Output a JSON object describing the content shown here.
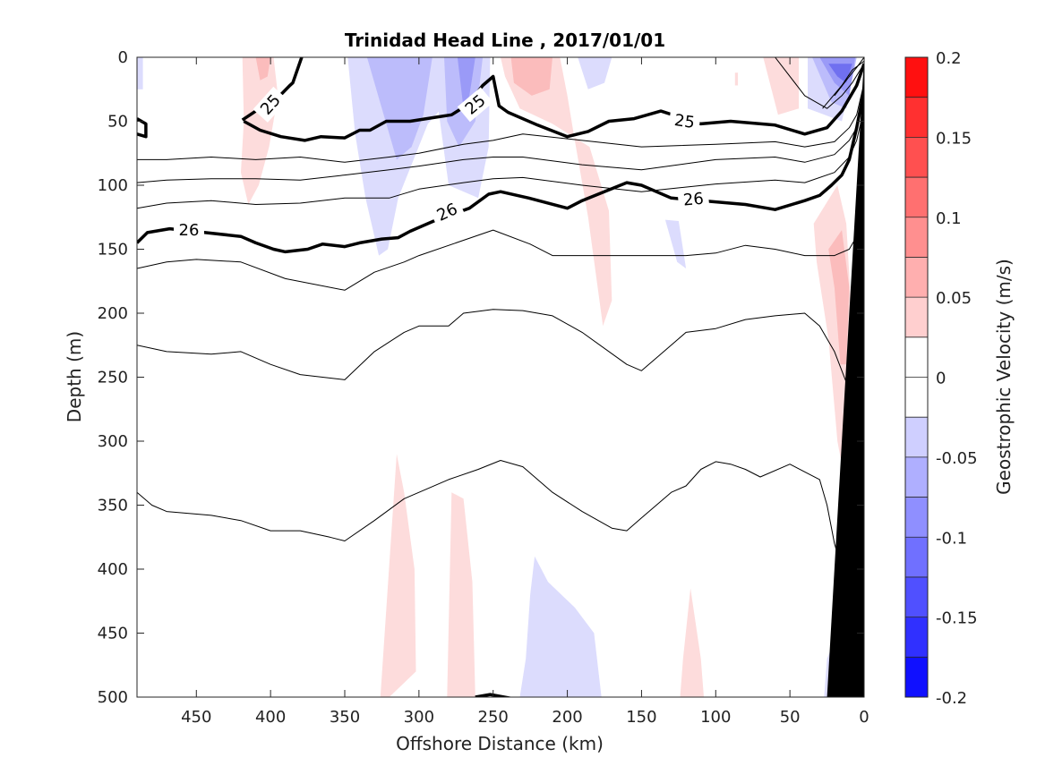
{
  "chart_data": {
    "type": "heatmap",
    "title": "Trinidad Head Line , 2017/01/01",
    "xlabel": "Offshore Distance (km)",
    "ylabel": "Depth (m)",
    "colorbar_label": "Geostrophic Velocity (m/s)",
    "xlim": [
      490,
      0
    ],
    "ylim": [
      0,
      500
    ],
    "x_reversed": true,
    "y_reversed": true,
    "x_ticks": [
      450,
      400,
      350,
      300,
      250,
      200,
      150,
      100,
      50,
      0
    ],
    "y_ticks": [
      0,
      50,
      100,
      150,
      200,
      250,
      300,
      350,
      400,
      450,
      500
    ],
    "colorbar_range": [
      -0.2,
      0.2
    ],
    "colorbar_ticks": [
      "0.2",
      "0.15",
      "0.1",
      "0.05",
      "0",
      "-0.05",
      "-0.1",
      "-0.15",
      "-0.2"
    ],
    "colorbar_levels": [
      0.175,
      0.15,
      0.125,
      0.1,
      0.075,
      0.05,
      0.025,
      0,
      -0.025,
      -0.05,
      -0.075,
      -0.1,
      -0.125,
      -0.15,
      -0.175
    ],
    "colors": {
      "pos_light": "#fddcdc",
      "pos_mid": "#fbbcbc",
      "pos_strong": "#f79a9a",
      "neg_light": "#dcdcfd",
      "neg_mid": "#bcbcfb",
      "neg_strong": "#9a9af7",
      "neg_core": "#7070f0",
      "bathymetry": "#000000",
      "contour": "#000000"
    },
    "isopycnal_labels": [
      "25",
      "25",
      "25",
      "26",
      "26",
      "26"
    ],
    "bathymetry": {
      "x": [
        0,
        0,
        5,
        15,
        25
      ],
      "y": [
        0,
        0,
        100,
        300,
        500
      ]
    },
    "velocity_patches": [
      {
        "v": -0.025,
        "x": [
          490,
          486,
          486,
          490
        ],
        "y": [
          0,
          0,
          25,
          25
        ]
      },
      {
        "v": 0.025,
        "x": [
          419,
          398,
          395,
          401,
          408,
          415,
          420,
          418
        ],
        "y": [
          0,
          0,
          30,
          70,
          100,
          115,
          90,
          50
        ]
      },
      {
        "v": 0.05,
        "x": [
          410,
          400,
          402,
          407
        ],
        "y": [
          0,
          0,
          15,
          18
        ]
      },
      {
        "v": -0.025,
        "x": [
          348,
          275,
          281,
          294,
          314,
          321,
          327,
          336,
          343
        ],
        "y": [
          0,
          0,
          35,
          52,
          110,
          150,
          155,
          110,
          60
        ]
      },
      {
        "v": -0.05,
        "x": [
          335,
          291,
          297,
          305,
          315
        ],
        "y": [
          0,
          0,
          45,
          70,
          80
        ]
      },
      {
        "v": -0.025,
        "x": [
          288,
          252,
          253,
          260,
          280,
          287
        ],
        "y": [
          0,
          0,
          70,
          110,
          100,
          40
        ]
      },
      {
        "v": -0.05,
        "x": [
          283,
          257,
          262,
          273,
          281
        ],
        "y": [
          0,
          0,
          50,
          70,
          50
        ]
      },
      {
        "v": -0.075,
        "x": [
          274,
          262,
          266,
          270
        ],
        "y": [
          0,
          0,
          30,
          40
        ]
      },
      {
        "v": 0.025,
        "x": [
          245,
          205,
          200,
          195,
          186,
          176,
          170,
          172,
          185,
          210,
          232,
          242
        ],
        "y": [
          0,
          0,
          30,
          65,
          125,
          210,
          190,
          120,
          70,
          52,
          40,
          15
        ]
      },
      {
        "v": 0.05,
        "x": [
          238,
          210,
          212,
          224,
          236
        ],
        "y": [
          0,
          0,
          25,
          30,
          20
        ]
      },
      {
        "v": -0.025,
        "x": [
          193,
          170,
          175,
          186
        ],
        "y": [
          0,
          0,
          20,
          25
        ]
      },
      {
        "v": -0.025,
        "x": [
          134,
          125,
          120,
          126
        ],
        "y": [
          127,
          128,
          165,
          160
        ]
      },
      {
        "v": 0.025,
        "x": [
          87,
          85,
          85,
          87
        ],
        "y": [
          12,
          12,
          22,
          22
        ]
      },
      {
        "v": 0.025,
        "x": [
          68,
          44,
          44,
          58
        ],
        "y": [
          0,
          0,
          40,
          45
        ]
      },
      {
        "v": -0.025,
        "x": [
          38,
          5,
          15,
          38
        ],
        "y": [
          0,
          0,
          50,
          40
        ]
      },
      {
        "v": -0.05,
        "x": [
          35,
          5,
          12,
          22
        ],
        "y": [
          0,
          0,
          40,
          35
        ]
      },
      {
        "v": -0.075,
        "x": [
          30,
          6,
          10,
          20
        ],
        "y": [
          0,
          0,
          30,
          20
        ]
      },
      {
        "v": -0.1,
        "x": [
          24,
          8,
          12,
          18
        ],
        "y": [
          5,
          5,
          20,
          15
        ]
      },
      {
        "v": 0.025,
        "x": [
          34,
          18,
          12,
          7,
          9,
          14,
          18,
          24,
          32
        ],
        "y": [
          130,
          100,
          130,
          230,
          300,
          325,
          300,
          220,
          160
        ]
      },
      {
        "v": 0.05,
        "x": [
          24,
          15,
          10,
          12,
          16,
          20
        ],
        "y": [
          150,
          135,
          180,
          240,
          240,
          180
        ]
      },
      {
        "v": 0.025,
        "x": [
          342,
          326,
          315,
          310,
          303,
          302,
          320
        ],
        "y": [
          500,
          500,
          310,
          340,
          400,
          480,
          500
        ]
      },
      {
        "v": 0.025,
        "x": [
          298,
          281,
          278,
          270,
          264,
          262,
          290
        ],
        "y": [
          500,
          500,
          340,
          345,
          410,
          500,
          500
        ]
      },
      {
        "v": -0.025,
        "x": [
          232,
          177,
          182,
          195,
          213,
          222,
          225,
          228
        ],
        "y": [
          500,
          500,
          450,
          430,
          410,
          390,
          420,
          470
        ]
      },
      {
        "v": 0.025,
        "x": [
          124,
          108,
          110,
          117,
          122
        ],
        "y": [
          500,
          500,
          470,
          415,
          470
        ]
      },
      {
        "v": -0.025,
        "x": [
          27,
          18,
          18,
          25
        ],
        "y": [
          500,
          500,
          450,
          470
        ]
      }
    ],
    "isopycnals": [
      {
        "bold": true,
        "x": [
          490,
          484,
          484,
          490
        ],
        "y": [
          48,
          52,
          62,
          60
        ]
      },
      {
        "bold": true,
        "x": [
          419,
          410,
          398,
          387,
          385,
          379
        ],
        "y": [
          49,
          42,
          35,
          22,
          20,
          0
        ]
      },
      {
        "bold": true,
        "x": [
          418,
          407,
          393,
          377,
          366,
          350,
          340,
          333,
          322,
          306,
          278,
          267,
          257,
          250,
          246,
          240,
          220,
          200,
          186,
          172,
          155,
          137,
          110,
          90,
          60,
          40,
          25,
          15,
          5,
          0
        ],
        "y": [
          50,
          57,
          62,
          65,
          62,
          63,
          57,
          57,
          50,
          50,
          45,
          37,
          22,
          15,
          38,
          43,
          53,
          62,
          58,
          50,
          48,
          42,
          52,
          50,
          53,
          60,
          55,
          42,
          22,
          5
        ]
      },
      {
        "bold": true,
        "x": [
          490,
          483,
          468,
          444,
          420,
          410,
          398,
          390,
          375,
          365,
          350,
          340,
          325,
          314,
          306,
          290,
          266,
          253,
          245,
          226,
          200,
          190,
          160,
          150,
          130,
          100,
          80,
          60,
          40,
          30,
          22,
          15,
          10,
          5,
          0
        ],
        "y": [
          145,
          137,
          134,
          137,
          140,
          145,
          150,
          152,
          150,
          146,
          148,
          145,
          142,
          141,
          136,
          128,
          118,
          107,
          105,
          110,
          118,
          112,
          98,
          100,
          110,
          113,
          115,
          119,
          112,
          108,
          100,
          92,
          80,
          55,
          25
        ]
      },
      {
        "bold": false,
        "x": [
          490,
          470,
          440,
          410,
          380,
          350,
          320,
          300,
          270,
          250,
          230,
          190,
          150,
          100,
          60,
          40,
          20,
          10,
          5,
          0
        ],
        "y": [
          80,
          80,
          78,
          80,
          78,
          82,
          78,
          75,
          68,
          65,
          60,
          65,
          70,
          68,
          66,
          70,
          66,
          55,
          45,
          20
        ]
      },
      {
        "bold": false,
        "x": [
          490,
          470,
          440,
          410,
          380,
          350,
          320,
          300,
          270,
          250,
          230,
          190,
          150,
          100,
          60,
          40,
          20,
          10,
          5,
          0
        ],
        "y": [
          98,
          96,
          95,
          95,
          96,
          92,
          88,
          85,
          80,
          78,
          78,
          84,
          88,
          80,
          78,
          82,
          76,
          65,
          55,
          30
        ]
      },
      {
        "bold": false,
        "x": [
          490,
          470,
          440,
          410,
          380,
          350,
          320,
          300,
          270,
          250,
          230,
          190,
          150,
          100,
          60,
          40,
          20,
          10,
          5,
          0
        ],
        "y": [
          118,
          114,
          112,
          115,
          114,
          110,
          110,
          103,
          98,
          95,
          94,
          100,
          105,
          99,
          96,
          98,
          90,
          78,
          65,
          40
        ]
      },
      {
        "bold": false,
        "x": [
          20,
          10,
          5,
          0
        ],
        "y": [
          30,
          15,
          8,
          0
        ]
      },
      {
        "bold": false,
        "x": [
          28,
          15,
          8,
          0
        ],
        "y": [
          40,
          22,
          10,
          3
        ]
      },
      {
        "bold": false,
        "x": [
          60,
          40,
          25,
          15,
          8,
          0
        ],
        "y": [
          0,
          30,
          40,
          30,
          20,
          5
        ]
      },
      {
        "bold": false,
        "x": [
          490,
          470,
          450,
          420,
          390,
          350,
          330,
          310,
          300,
          275,
          250,
          225,
          210,
          180,
          150,
          120,
          100,
          80,
          60,
          40,
          20,
          10,
          0
        ],
        "y": [
          165,
          160,
          158,
          160,
          173,
          182,
          168,
          160,
          155,
          145,
          135,
          146,
          155,
          155,
          155,
          155,
          153,
          147,
          150,
          155,
          155,
          150,
          130
        ]
      },
      {
        "bold": false,
        "x": [
          490,
          470,
          440,
          420,
          400,
          380,
          350,
          330,
          310,
          300,
          280,
          270,
          250,
          230,
          210,
          190,
          160,
          150,
          140,
          120,
          100,
          80,
          60,
          40,
          30,
          20,
          10,
          0
        ],
        "y": [
          225,
          230,
          232,
          230,
          240,
          248,
          252,
          230,
          215,
          210,
          210,
          200,
          197,
          198,
          202,
          215,
          240,
          245,
          235,
          215,
          212,
          205,
          202,
          200,
          210,
          230,
          260,
          290
        ]
      },
      {
        "bold": false,
        "x": [
          490,
          480,
          470,
          440,
          420,
          400,
          380,
          360,
          350,
          330,
          310,
          300,
          280,
          260,
          245,
          230,
          210,
          190,
          170,
          160,
          150,
          140,
          130,
          120,
          110,
          100,
          90,
          80,
          70,
          50,
          30,
          25,
          20,
          10
        ],
        "y": [
          340,
          350,
          355,
          358,
          362,
          370,
          370,
          375,
          378,
          362,
          345,
          340,
          330,
          322,
          315,
          320,
          340,
          355,
          368,
          370,
          360,
          350,
          340,
          335,
          322,
          316,
          318,
          322,
          328,
          318,
          330,
          350,
          380,
          420
        ]
      },
      {
        "bold": true,
        "x": [
          262,
          252,
          238
        ],
        "y": [
          500,
          498,
          501
        ]
      }
    ]
  }
}
